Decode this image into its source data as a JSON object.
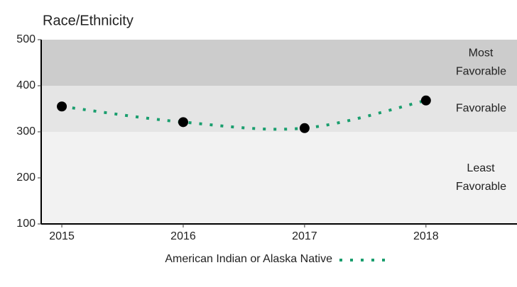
{
  "chart_data": {
    "type": "line",
    "title": "Race/Ethnicity",
    "x": [
      2015,
      2016,
      2017,
      2018
    ],
    "series": [
      {
        "name": "American Indian or Alaska Native",
        "color": "#1a9e6e",
        "marker_color": "#000000",
        "values": [
          355,
          321,
          308,
          368
        ]
      }
    ],
    "xlim": [
      2014.83,
      2018.75
    ],
    "xticks": [
      2015,
      2016,
      2017,
      2018
    ],
    "ylim": [
      100,
      500
    ],
    "yticks": [
      100,
      200,
      300,
      400,
      500
    ],
    "bands": [
      {
        "label": [
          "Least",
          "Favorable"
        ],
        "range": [
          100,
          300
        ],
        "color": "#f2f2f2"
      },
      {
        "label": [
          "Favorable"
        ],
        "range": [
          300,
          400
        ],
        "color": "#e5e5e5"
      },
      {
        "label": [
          "Most",
          "Favorable"
        ],
        "range": [
          400,
          500
        ],
        "color": "#cccccc"
      }
    ],
    "legend": "bottom"
  }
}
